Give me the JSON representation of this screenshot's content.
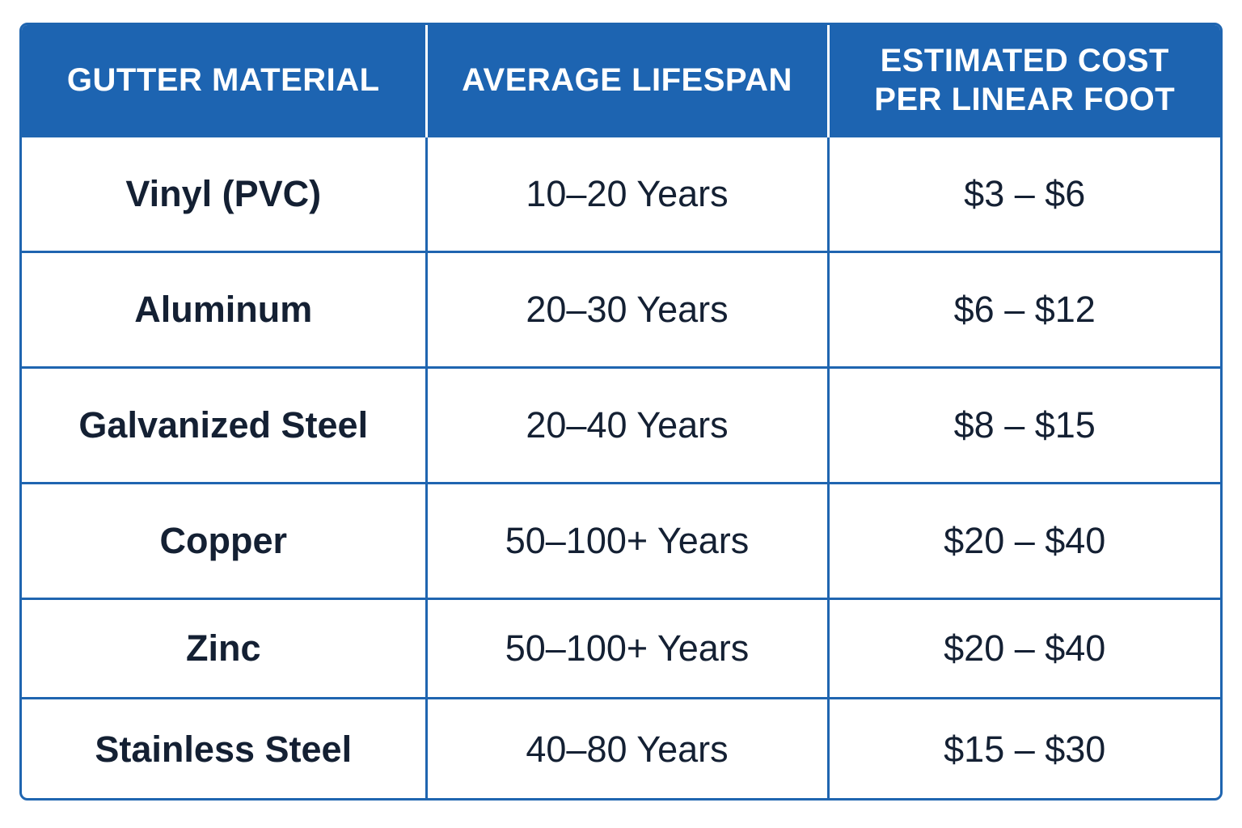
{
  "table": {
    "headers": [
      "GUTTER MATERIAL",
      "AVERAGE LIFESPAN",
      "ESTIMATED COST PER LINEAR FOOT"
    ],
    "rows": [
      [
        "Vinyl (PVC)",
        "10–20 Years",
        "$3 – $6"
      ],
      [
        "Aluminum",
        "20–30 Years",
        "$6 – $12"
      ],
      [
        "Galvanized Steel",
        "20–40 Years",
        "$8 – $15"
      ],
      [
        "Copper",
        "50–100+ Years",
        "$20 – $40"
      ],
      [
        "Zinc",
        "50–100+ Years",
        "$20 – $40"
      ],
      [
        "Stainless Steel",
        "40–80 Years",
        "$15 – $30"
      ]
    ]
  },
  "colors": {
    "header_background": "#1d64b1",
    "header_text": "#ffffff",
    "grid_lines": "#1f65b0",
    "body_text": "#142033"
  }
}
